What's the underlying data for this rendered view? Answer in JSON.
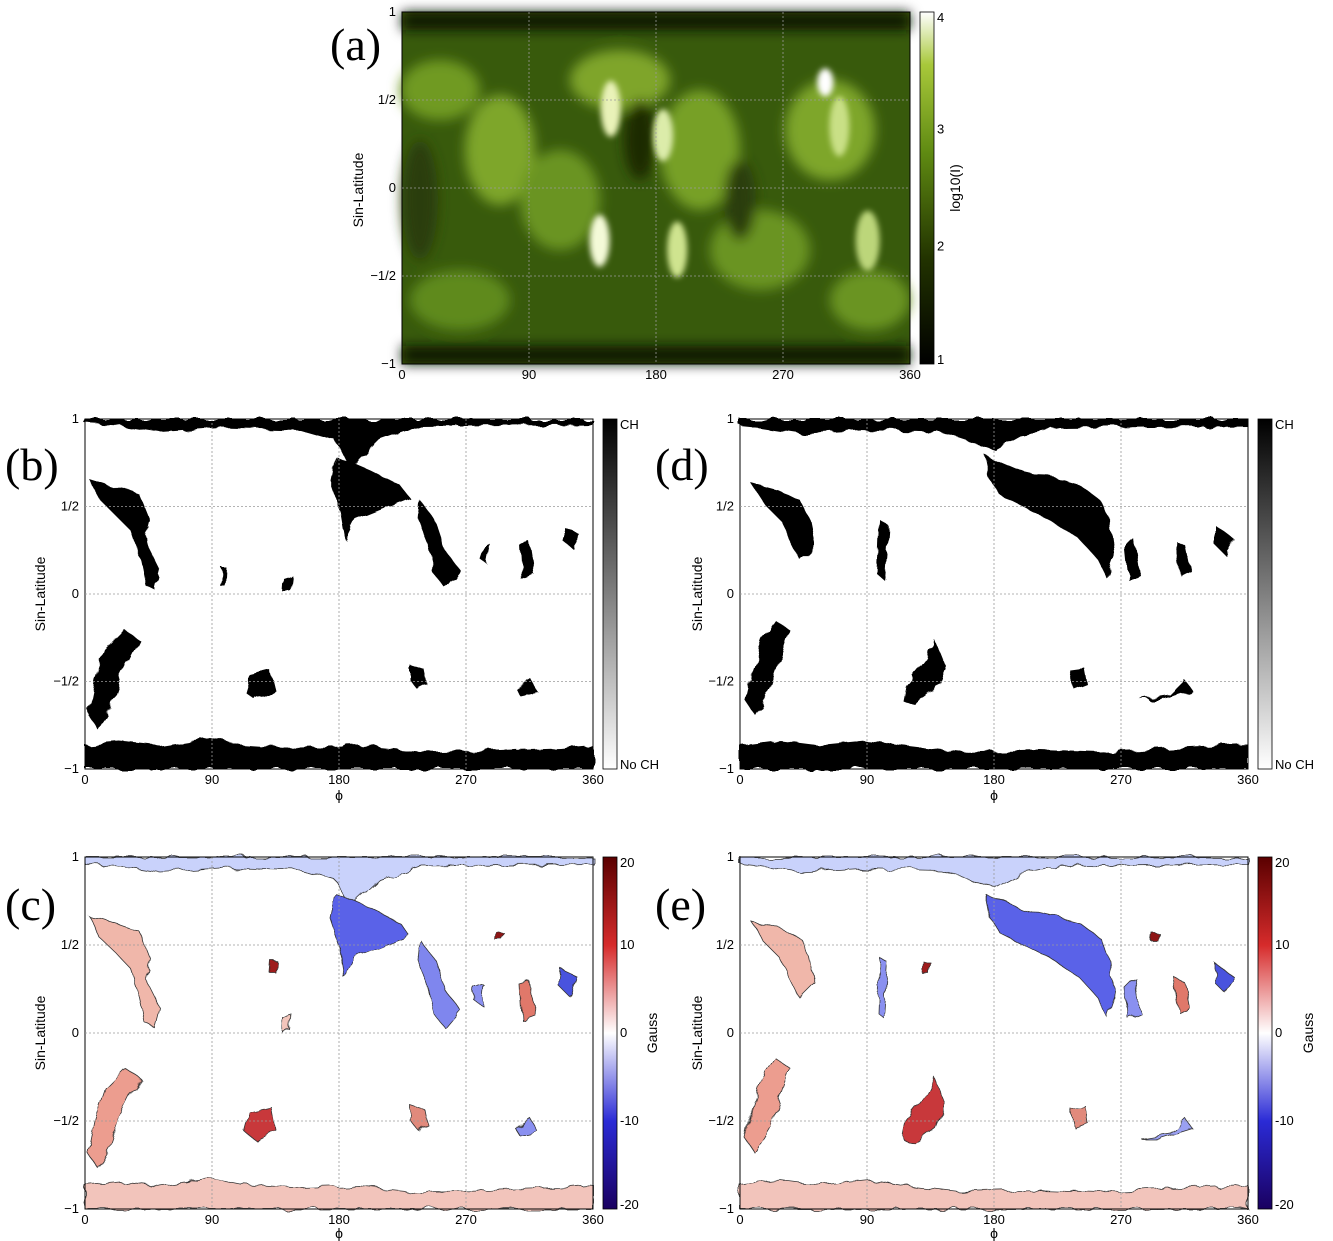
{
  "chart_data": [
    {
      "id": "a",
      "panel_label": "(a)",
      "type": "heatmap",
      "ylabel": "Sin-Latitude",
      "xlabel": "",
      "xlim": [
        0,
        360
      ],
      "ylim": [
        -1,
        1
      ],
      "xticks": [
        "0",
        "90",
        "180",
        "270",
        "360"
      ],
      "yticks": [
        "−1",
        "−1/2",
        "0",
        "1/2",
        "1"
      ],
      "colorbar": {
        "label": "log10(I)",
        "ticks": [
          "1",
          "2",
          "3",
          "4"
        ],
        "colors": [
          "#000000",
          "#223300",
          "#5f8a12",
          "#a8c83a",
          "#ffffff"
        ]
      },
      "grid": true,
      "bright_features": [
        {
          "x": 148,
          "y": 0.45
        },
        {
          "x": 185,
          "y": 0.3
        },
        {
          "x": 300,
          "y": 0.6
        },
        {
          "x": 310,
          "y": 0.35
        },
        {
          "x": 140,
          "y": -0.3
        },
        {
          "x": 195,
          "y": -0.35
        },
        {
          "x": 330,
          "y": -0.3
        }
      ]
    },
    {
      "id": "b",
      "panel_label": "(b)",
      "type": "heatmap",
      "ylabel": "Sin-Latitude",
      "xlabel": "ϕ",
      "xlim": [
        0,
        360
      ],
      "ylim": [
        -1,
        1
      ],
      "xticks": [
        "0",
        "90",
        "180",
        "270",
        "360"
      ],
      "yticks": [
        "−1",
        "−1/2",
        "0",
        "1/2",
        "1"
      ],
      "colorbar": {
        "label": "",
        "ticks": [
          "No CH",
          "CH"
        ],
        "colors": [
          "#ffffff",
          "#000000"
        ]
      },
      "grid": true,
      "regions": [
        {
          "x": [
            0,
            360
          ],
          "y": [
            0.96,
            1.0
          ],
          "polar": "north"
        },
        {
          "x": [
            0,
            360
          ],
          "y": [
            -1.0,
            -0.9
          ],
          "polar": "south"
        },
        {
          "x": [
            0,
            45
          ],
          "y": [
            0.05,
            0.7
          ],
          "kind": "patch"
        },
        {
          "x": 178,
          "y": [
            0.35,
            0.85
          ],
          "kind": "patch"
        },
        {
          "x": 245,
          "y": [
            0.1,
            0.5
          ],
          "kind": "patch"
        },
        {
          "x": 5,
          "y": [
            -0.8,
            -0.25
          ],
          "kind": "patch"
        },
        {
          "x": 120,
          "y": -0.5,
          "kind": "patch"
        },
        {
          "x": 235,
          "y": -0.48,
          "kind": "patch"
        },
        {
          "x": 310,
          "y": -0.52,
          "kind": "patch"
        }
      ]
    },
    {
      "id": "c",
      "panel_label": "(c)",
      "type": "heatmap",
      "ylabel": "Sin-Latitude",
      "xlabel": "ϕ",
      "xlim": [
        0,
        360
      ],
      "ylim": [
        -1,
        1
      ],
      "xticks": [
        "0",
        "90",
        "180",
        "270",
        "360"
      ],
      "yticks": [
        "−1",
        "−1/2",
        "0",
        "1/2",
        "1"
      ],
      "colorbar": {
        "label": "Gauss",
        "ticks": [
          "-20",
          "-10",
          "0",
          "10",
          "20"
        ],
        "range": [
          -20,
          20
        ],
        "colors": [
          "#1a0060",
          "#2b2bd6",
          "#ffffff",
          "#d62b2b",
          "#5a0000"
        ]
      },
      "grid": true,
      "regions": [
        {
          "x": [
            0,
            360
          ],
          "y": [
            0.96,
            1.0
          ],
          "polarity": "negative"
        },
        {
          "x": [
            0,
            360
          ],
          "y": [
            -1.0,
            -0.9
          ],
          "polarity": "positive"
        },
        {
          "x": [
            0,
            45
          ],
          "y": [
            0.05,
            0.7
          ],
          "polarity": "positive"
        },
        {
          "x": 178,
          "y": [
            0.35,
            0.85
          ],
          "polarity": "negative"
        },
        {
          "x": 245,
          "y": [
            0.1,
            0.5
          ],
          "polarity": "negative"
        },
        {
          "x": 5,
          "y": [
            -0.8,
            -0.25
          ],
          "polarity": "positive"
        },
        {
          "x": 120,
          "y": -0.5,
          "polarity": "positive"
        },
        {
          "x": 235,
          "y": -0.48,
          "polarity": "positive"
        },
        {
          "x": 310,
          "y": -0.52,
          "polarity": "negative"
        }
      ]
    },
    {
      "id": "d",
      "panel_label": "(d)",
      "type": "heatmap",
      "ylabel": "Sin-Latitude",
      "xlabel": "ϕ",
      "xlim": [
        0,
        360
      ],
      "ylim": [
        -1,
        1
      ],
      "xticks": [
        "0",
        "90",
        "180",
        "270",
        "360"
      ],
      "yticks": [
        "−1",
        "−1/2",
        "0",
        "1/2",
        "1"
      ],
      "colorbar": {
        "label": "",
        "ticks": [
          "No CH",
          "CH"
        ],
        "colors": [
          "#ffffff",
          "#000000"
        ]
      },
      "grid": true,
      "regions": [
        {
          "x": [
            0,
            360
          ],
          "y": [
            0.96,
            1.0
          ],
          "polar": "north"
        },
        {
          "x": [
            0,
            360
          ],
          "y": [
            -1.0,
            -0.9
          ],
          "polar": "south"
        },
        {
          "x": [
            0,
            60
          ],
          "y": [
            -0.8,
            0.7
          ],
          "kind": "patch"
        },
        {
          "x": [
            180,
            280
          ],
          "y": [
            0.1,
            0.9
          ],
          "kind": "patch"
        },
        {
          "x": 140,
          "y": -0.45,
          "kind": "patch"
        },
        {
          "x": 310,
          "y": -0.55,
          "kind": "patch"
        }
      ]
    },
    {
      "id": "e",
      "panel_label": "(e)",
      "type": "heatmap",
      "ylabel": "Sin-Latitude",
      "xlabel": "ϕ",
      "xlim": [
        0,
        360
      ],
      "ylim": [
        -1,
        1
      ],
      "xticks": [
        "0",
        "90",
        "180",
        "270",
        "360"
      ],
      "yticks": [
        "−1",
        "−1/2",
        "0",
        "1/2",
        "1"
      ],
      "colorbar": {
        "label": "Gauss",
        "ticks": [
          "-20",
          "-10",
          "0",
          "10",
          "20"
        ],
        "range": [
          -20,
          20
        ],
        "colors": [
          "#1a0060",
          "#2b2bd6",
          "#ffffff",
          "#d62b2b",
          "#5a0000"
        ]
      },
      "grid": true,
      "regions": [
        {
          "x": [
            0,
            360
          ],
          "y": [
            0.96,
            1.0
          ],
          "polarity": "negative"
        },
        {
          "x": [
            0,
            360
          ],
          "y": [
            -1.0,
            -0.9
          ],
          "polarity": "positive"
        },
        {
          "x": [
            0,
            60
          ],
          "y": [
            -0.8,
            0.7
          ],
          "polarity": "positive"
        },
        {
          "x": [
            180,
            280
          ],
          "y": [
            0.1,
            0.9
          ],
          "polarity": "negative"
        },
        {
          "x": 140,
          "y": -0.45,
          "polarity": "positive"
        },
        {
          "x": 310,
          "y": -0.55,
          "polarity": "negative"
        }
      ]
    }
  ]
}
